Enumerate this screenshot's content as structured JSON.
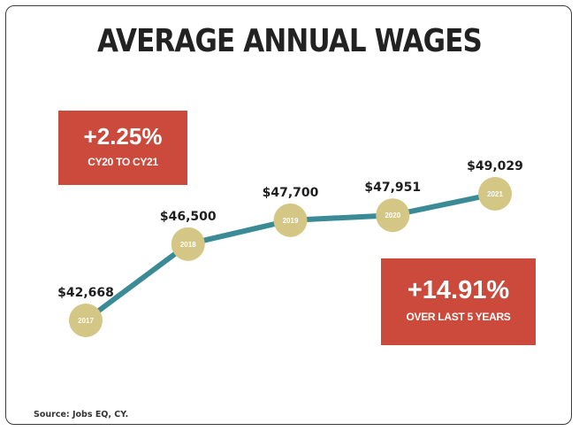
{
  "title": "AVERAGE ANNUAL WAGES",
  "callouts": {
    "left": {
      "pct": "+2.25%",
      "sub": "CY20 TO CY21"
    },
    "right": {
      "pct": "+14.91%",
      "sub": "OVER LAST 5 YEARS"
    }
  },
  "source": "Source: Jobs EQ, CY.",
  "colors": {
    "line": "#3a8b96",
    "marker": "#d4c685",
    "callout": "#cc4a3b"
  },
  "chart_data": {
    "type": "line",
    "title": "AVERAGE ANNUAL WAGES",
    "x": [
      "2017",
      "2018",
      "2019",
      "2020",
      "2021"
    ],
    "values": [
      42668,
      46500,
      47700,
      47951,
      49029
    ],
    "value_labels": [
      "$42,668",
      "$46,500",
      "$47,700",
      "$47,951",
      "$49,029"
    ],
    "ylim": [
      42668,
      49029
    ],
    "grid": false,
    "axes_visible": false
  }
}
